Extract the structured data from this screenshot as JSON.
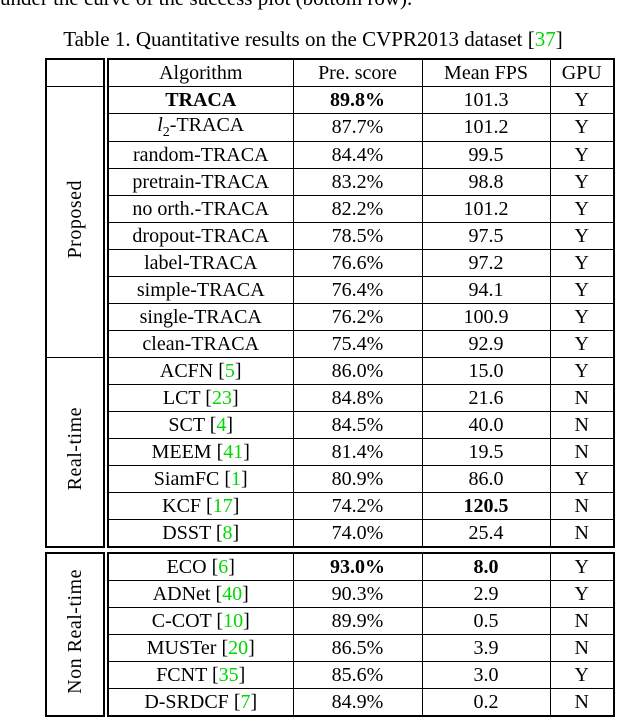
{
  "colors": {
    "citation_green": "#00d800",
    "text_black": "#000000"
  },
  "page": {
    "clipped_text": "under the curve of the success plot (bottom row).",
    "caption": {
      "prefix": "Table 1. Quantitative results on the CVPR2013 dataset [",
      "cite": "37",
      "suffix": "]"
    }
  },
  "table": {
    "headers": [
      "Algorithm",
      "Pre. score",
      "Mean FPS",
      "GPU"
    ],
    "blocks": [
      {
        "has_header": true,
        "groups": [
          {
            "label": "Proposed",
            "rows": [
              {
                "name": "TRACA",
                "score": "89.8%",
                "fps": "101.3",
                "gpu": "Y",
                "bold_name": true,
                "bold_score": true
              },
              {
                "name": "l2-TRACA",
                "sub2": true,
                "score": "87.7%",
                "fps": "101.2",
                "gpu": "Y"
              },
              {
                "name": "random-TRACA",
                "score": "84.4%",
                "fps": "99.5",
                "gpu": "Y"
              },
              {
                "name": "pretrain-TRACA",
                "score": "83.2%",
                "fps": "98.8",
                "gpu": "Y"
              },
              {
                "name": "no orth.-TRACA",
                "score": "82.2%",
                "fps": "101.2",
                "gpu": "Y"
              },
              {
                "name": "dropout-TRACA",
                "score": "78.5%",
                "fps": "97.5",
                "gpu": "Y"
              },
              {
                "name": "label-TRACA",
                "score": "76.6%",
                "fps": "97.2",
                "gpu": "Y"
              },
              {
                "name": "simple-TRACA",
                "score": "76.4%",
                "fps": "94.1",
                "gpu": "Y"
              },
              {
                "name": "single-TRACA",
                "score": "76.2%",
                "fps": "100.9",
                "gpu": "Y"
              },
              {
                "name": "clean-TRACA",
                "score": "75.4%",
                "fps": "92.9",
                "gpu": "Y"
              }
            ]
          },
          {
            "label": "Real-time",
            "rows": [
              {
                "name": "ACFN",
                "cite": "5",
                "score": "86.0%",
                "fps": "15.0",
                "gpu": "Y"
              },
              {
                "name": "LCT",
                "cite": "23",
                "score": "84.8%",
                "fps": "21.6",
                "gpu": "N"
              },
              {
                "name": "SCT",
                "cite": "4",
                "score": "84.5%",
                "fps": "40.0",
                "gpu": "N"
              },
              {
                "name": "MEEM",
                "cite": "41",
                "score": "81.4%",
                "fps": "19.5",
                "gpu": "N"
              },
              {
                "name": "SiamFC",
                "cite": "1",
                "score": "80.9%",
                "fps": "86.0",
                "gpu": "Y"
              },
              {
                "name": "KCF",
                "cite": "17",
                "score": "74.2%",
                "fps": "120.5",
                "gpu": "N",
                "bold_fps": true
              },
              {
                "name": "DSST",
                "cite": "8",
                "score": "74.0%",
                "fps": "25.4",
                "gpu": "N"
              }
            ]
          }
        ]
      },
      {
        "has_header": false,
        "groups": [
          {
            "label": "Non Real-time",
            "rows": [
              {
                "name": "ECO",
                "cite": "6",
                "score": "93.0%",
                "fps": "8.0",
                "gpu": "Y",
                "bold_score": true,
                "bold_fps": true
              },
              {
                "name": "ADNet",
                "cite": "40",
                "score": "90.3%",
                "fps": "2.9",
                "gpu": "Y"
              },
              {
                "name": "C-COT",
                "cite": "10",
                "score": "89.9%",
                "fps": "0.5",
                "gpu": "N"
              },
              {
                "name": "MUSTer",
                "cite": "20",
                "score": "86.5%",
                "fps": "3.9",
                "gpu": "N"
              },
              {
                "name": "FCNT",
                "cite": "35",
                "score": "85.6%",
                "fps": "3.0",
                "gpu": "Y"
              },
              {
                "name": "D-SRDCF",
                "cite": "7",
                "score": "84.9%",
                "fps": "0.2",
                "gpu": "N"
              }
            ]
          }
        ]
      }
    ]
  }
}
